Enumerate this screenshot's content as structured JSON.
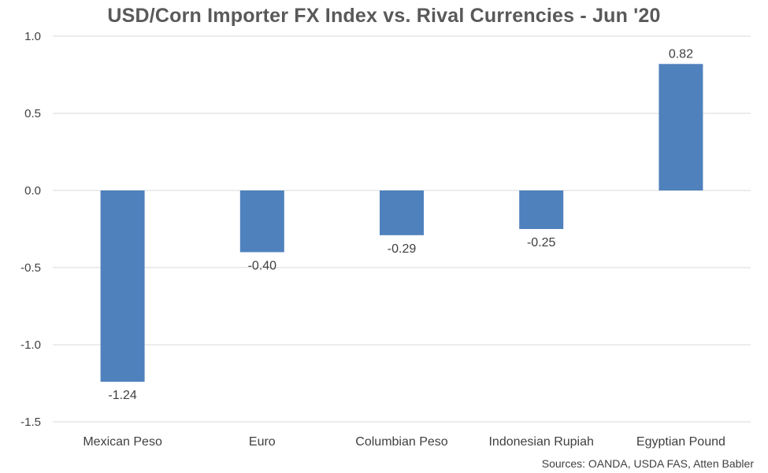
{
  "chart_data": {
    "type": "bar",
    "title": "USD/Corn Importer FX Index vs. Rival Currencies - Jun '20",
    "categories": [
      "Mexican Peso",
      "Euro",
      "Columbian Peso",
      "Indonesian Rupiah",
      "Egyptian Pound"
    ],
    "values": [
      -1.24,
      -0.4,
      -0.29,
      -0.25,
      0.82
    ],
    "data_labels": [
      "-1.24",
      "-0.40",
      "-0.29",
      "-0.25",
      "0.82"
    ],
    "ylim": [
      -1.5,
      1.0
    ],
    "yticks": [
      1.0,
      0.5,
      0.0,
      -0.5,
      -1.0,
      -1.5
    ],
    "ytick_labels": [
      "1.0",
      "0.5",
      "0.0",
      "-0.5",
      "-1.0",
      "-1.5"
    ],
    "xlabel": "",
    "ylabel": "",
    "grid": true,
    "legend": "none",
    "bar_color": "#4f81bd",
    "grid_color": "#d9d9d9",
    "source": "Sources: OANDA, USDA FAS, Atten Babler"
  }
}
